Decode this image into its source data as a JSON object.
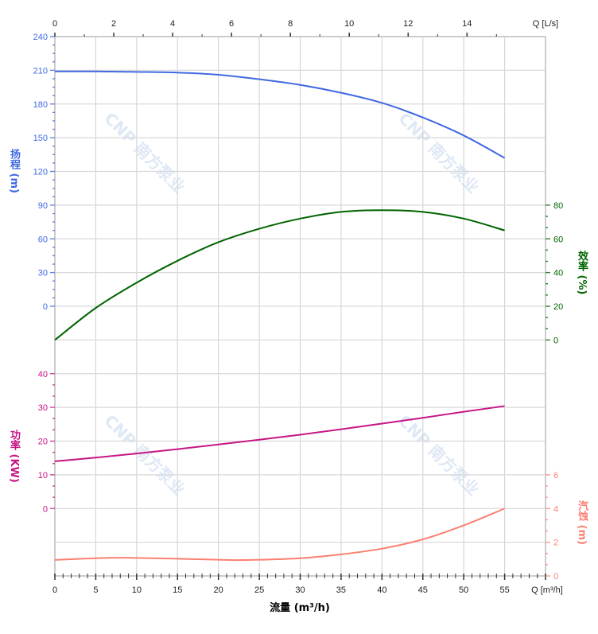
{
  "chart_data": {
    "type": "line",
    "x": {
      "label": "流量 (m³/h)",
      "unit_label": "Q [m³/h]",
      "range": [
        0,
        60
      ],
      "ticks": [
        0,
        5,
        10,
        15,
        20,
        25,
        30,
        35,
        40,
        45,
        50,
        55
      ]
    },
    "x_top": {
      "unit_label": "Q [L/s]",
      "ticks": [
        0,
        2,
        4,
        6,
        8,
        10,
        12,
        14
      ]
    },
    "grid": true,
    "axes": {
      "head": {
        "label": "扬程 (m)",
        "chars": [
          "扬",
          "程",
          "(m)"
        ],
        "side": "left",
        "range": [
          0,
          240
        ],
        "ticks": [
          0,
          30,
          60,
          90,
          120,
          150,
          180,
          210,
          240
        ],
        "color": "#4169e1"
      },
      "efficiency": {
        "label": "效率 (%)",
        "chars": [
          "效",
          "率",
          "(%)"
        ],
        "side": "right",
        "range": [
          0,
          80
        ],
        "ticks": [
          0,
          20,
          40,
          60,
          80
        ],
        "color": "#006400"
      },
      "power": {
        "label": "功率 (KW)",
        "chars": [
          "功",
          "率",
          "(KW)"
        ],
        "side": "left",
        "range": [
          0,
          40
        ],
        "ticks": [
          0,
          10,
          20,
          30,
          40
        ],
        "color": "#c71585"
      },
      "npsh": {
        "label": "汽蚀 (m)",
        "chars": [
          "汽",
          "蚀",
          "(m)"
        ],
        "side": "right",
        "range": [
          0,
          6
        ],
        "ticks": [
          0,
          2,
          4,
          6
        ],
        "color": "#fa8072"
      }
    },
    "series": [
      {
        "axis": "head",
        "color": "#4169e1",
        "x": [
          0,
          5,
          10,
          15,
          20,
          25,
          30,
          35,
          40,
          45,
          50,
          55
        ],
        "y": [
          209,
          209,
          208.6,
          208,
          206,
          202,
          197,
          190,
          181,
          168,
          152,
          132
        ]
      },
      {
        "axis": "efficiency",
        "color": "#006400",
        "x": [
          0,
          5,
          10,
          15,
          20,
          25,
          30,
          35,
          40,
          45,
          50,
          55
        ],
        "y": [
          0,
          19,
          34,
          47,
          58,
          66,
          72,
          76,
          77,
          76,
          72,
          65
        ]
      },
      {
        "axis": "power",
        "color": "#c71585",
        "x": [
          0,
          5,
          10,
          15,
          20,
          25,
          30,
          35,
          40,
          45,
          50,
          55
        ],
        "y": [
          14,
          15.1,
          16.3,
          17.6,
          19,
          20.4,
          21.9,
          23.5,
          25.2,
          26.9,
          28.7,
          30.4
        ]
      },
      {
        "axis": "npsh",
        "color": "#fa8072",
        "x": [
          0,
          5,
          8,
          10,
          15,
          20,
          22,
          25,
          30,
          35,
          40,
          45,
          50,
          55
        ],
        "y": [
          0.95,
          1.05,
          1.08,
          1.07,
          1.02,
          0.96,
          0.94,
          0.96,
          1.05,
          1.28,
          1.62,
          2.17,
          3.0,
          4.0
        ]
      }
    ],
    "watermark": "CNP 南方泵业"
  }
}
